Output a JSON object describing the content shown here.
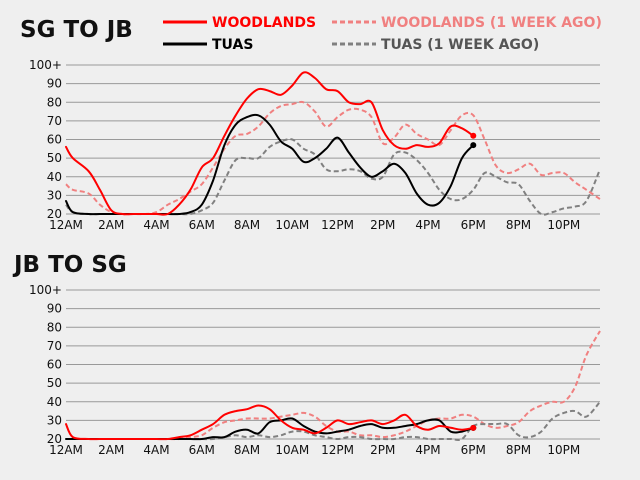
{
  "legend": {
    "woodlands": "WOODLANDS",
    "woodlands_week": "WOODLANDS (1 WEEK AGO)",
    "tuas": "TUAS",
    "tuas_week": "TUAS (1 WEEK AGO)"
  },
  "colors": {
    "woodlands": "#ff0000",
    "woodlands_week": "#f08080",
    "tuas": "#000000",
    "tuas_week": "#808080",
    "grid": "#999999",
    "background": "#efefef"
  },
  "chart_data": [
    {
      "type": "line",
      "title": "SG TO JB",
      "x_unit": "hour of day",
      "x_ticks": [
        0,
        2,
        4,
        6,
        8,
        10,
        12,
        14,
        16,
        18,
        20,
        22
      ],
      "x_tick_labels": [
        "12AM",
        "2AM",
        "4AM",
        "6AM",
        "8AM",
        "10AM",
        "12PM",
        "2PM",
        "4PM",
        "6PM",
        "8PM",
        "10PM"
      ],
      "y_ticks": [
        20,
        30,
        40,
        50,
        60,
        70,
        80,
        90,
        100
      ],
      "y_tick_labels": [
        "20",
        "30",
        "40",
        "50",
        "60",
        "70",
        "80",
        "90",
        "100+"
      ],
      "xlim": [
        0,
        23.6
      ],
      "ylim": [
        20,
        100
      ],
      "grid": "horizontal",
      "legend_position": "top-right",
      "series": [
        {
          "key": "woodlands",
          "name": "WOODLANDS",
          "style": "solid",
          "end_marker": true,
          "x": [
            0,
            0.3,
            1,
            1.5,
            2,
            2.5,
            3,
            3.5,
            4,
            4.5,
            5,
            5.5,
            6,
            6.5,
            7,
            7.5,
            8,
            8.5,
            9,
            9.5,
            10,
            10.5,
            11,
            11.5,
            12,
            12.5,
            13,
            13.5,
            14,
            14.5,
            15,
            15.5,
            16,
            16.5,
            17,
            17.5,
            18
          ],
          "y": [
            56,
            50,
            43,
            33,
            22,
            20,
            20,
            20,
            20,
            20,
            25,
            33,
            45,
            50,
            62,
            73,
            82,
            87,
            86,
            84,
            89,
            96,
            93,
            87,
            86,
            80,
            79,
            80,
            65,
            57,
            55,
            57,
            56,
            58,
            67,
            66,
            62
          ]
        },
        {
          "key": "tuas",
          "name": "TUAS",
          "style": "solid",
          "end_marker": true,
          "x": [
            0,
            0.3,
            1,
            1.5,
            2,
            2.5,
            3,
            3.5,
            4,
            4.5,
            5,
            5.5,
            6,
            6.5,
            7,
            7.5,
            8,
            8.5,
            9,
            9.5,
            10,
            10.5,
            11,
            11.5,
            12,
            12.5,
            13,
            13.5,
            14,
            14.5,
            15,
            15.5,
            16,
            16.5,
            17,
            17.5,
            18
          ],
          "y": [
            27,
            21,
            20,
            20,
            20,
            20,
            20,
            20,
            20,
            20,
            20,
            21,
            25,
            38,
            57,
            68,
            72,
            73,
            68,
            59,
            55,
            48,
            50,
            55,
            61,
            53,
            45,
            40,
            43,
            47,
            42,
            31,
            25,
            26,
            35,
            50,
            57
          ]
        },
        {
          "key": "woodlands_week",
          "name": "WOODLANDS (1 WEEK AGO)",
          "style": "dashed",
          "end_marker": false,
          "x": [
            0,
            0.3,
            1,
            1.5,
            2,
            2.5,
            3,
            3.5,
            4,
            4.5,
            5,
            5.5,
            6,
            6.5,
            7,
            7.5,
            8,
            8.5,
            9,
            9.5,
            10,
            10.5,
            11,
            11.5,
            12,
            12.5,
            13,
            13.5,
            14,
            14.5,
            15,
            15.5,
            16,
            16.5,
            17,
            17.5,
            18,
            18.5,
            19,
            19.5,
            20,
            20.5,
            21,
            21.5,
            22,
            22.5,
            23,
            23.6
          ],
          "y": [
            36,
            33,
            31,
            25,
            21,
            20,
            20,
            20,
            21,
            25,
            28,
            32,
            36,
            45,
            55,
            62,
            63,
            67,
            74,
            78,
            79,
            80,
            75,
            67,
            72,
            76,
            76,
            72,
            58,
            61,
            68,
            63,
            60,
            57,
            65,
            73,
            73,
            60,
            46,
            42,
            44,
            47,
            41,
            42,
            42,
            37,
            33,
            28
          ]
        },
        {
          "key": "tuas_week",
          "name": "TUAS (1 WEEK AGO)",
          "style": "dashed",
          "end_marker": false,
          "x": [
            0,
            0.3,
            1,
            1.5,
            2,
            2.5,
            3,
            3.5,
            4,
            4.5,
            5,
            5.5,
            6,
            6.5,
            7,
            7.5,
            8,
            8.5,
            9,
            9.5,
            10,
            10.5,
            11,
            11.5,
            12,
            12.5,
            13,
            13.5,
            14,
            14.5,
            15,
            15.5,
            16,
            16.5,
            17,
            17.5,
            18,
            18.5,
            19,
            19.5,
            20,
            20.5,
            21,
            21.5,
            22,
            22.5,
            23,
            23.6
          ],
          "y": [
            25,
            21,
            20,
            20,
            20,
            20,
            20,
            20,
            20,
            20,
            20,
            20,
            22,
            26,
            38,
            49,
            50,
            50,
            56,
            59,
            60,
            55,
            52,
            44,
            43,
            44,
            43,
            39,
            40,
            52,
            53,
            49,
            42,
            33,
            28,
            28,
            33,
            42,
            40,
            37,
            36,
            27,
            20,
            21,
            23,
            24,
            27,
            44
          ]
        }
      ]
    },
    {
      "type": "line",
      "title": "JB TO SG",
      "x_unit": "hour of day",
      "x_ticks": [
        0,
        2,
        4,
        6,
        8,
        10,
        12,
        14,
        16,
        18,
        20,
        22
      ],
      "x_tick_labels": [
        "12AM",
        "2AM",
        "4AM",
        "6AM",
        "8AM",
        "10AM",
        "12PM",
        "2PM",
        "4PM",
        "6PM",
        "8PM",
        "10PM"
      ],
      "y_ticks": [
        20,
        30,
        40,
        50,
        60,
        70,
        80,
        90,
        100
      ],
      "y_tick_labels": [
        "20",
        "30",
        "40",
        "50",
        "60",
        "70",
        "80",
        "90",
        "100+"
      ],
      "xlim": [
        0,
        23.6
      ],
      "ylim": [
        20,
        100
      ],
      "grid": "horizontal",
      "series": [
        {
          "key": "woodlands",
          "name": "WOODLANDS",
          "style": "solid",
          "end_marker": true,
          "x": [
            0,
            0.3,
            1,
            1.5,
            2,
            2.5,
            3,
            3.5,
            4,
            4.5,
            5,
            5.5,
            6,
            6.5,
            7,
            7.5,
            8,
            8.5,
            9,
            9.5,
            10,
            10.5,
            11,
            11.5,
            12,
            12.5,
            13,
            13.5,
            14,
            14.5,
            15,
            15.5,
            16,
            16.5,
            17,
            17.5,
            18
          ],
          "y": [
            28,
            21,
            20,
            20,
            20,
            20,
            20,
            20,
            20,
            20,
            21,
            22,
            25,
            28,
            33,
            35,
            36,
            38,
            36,
            30,
            26,
            25,
            23,
            26,
            30,
            28,
            29,
            30,
            28,
            30,
            33,
            27,
            25,
            27,
            26,
            25,
            26
          ]
        },
        {
          "key": "tuas",
          "name": "TUAS",
          "style": "solid",
          "end_marker": true,
          "x": [
            0,
            0.3,
            1,
            1.5,
            2,
            2.5,
            3,
            3.5,
            4,
            4.5,
            5,
            5.5,
            6,
            6.5,
            7,
            7.5,
            8,
            8.5,
            9,
            9.5,
            10,
            10.5,
            11,
            11.5,
            12,
            12.5,
            13,
            13.5,
            14,
            14.5,
            15,
            15.5,
            16,
            16.5,
            17,
            17.5,
            18
          ],
          "y": [
            20,
            20,
            20,
            20,
            20,
            20,
            20,
            20,
            20,
            20,
            20,
            20,
            20,
            21,
            21,
            24,
            25,
            23,
            29,
            30,
            31,
            27,
            24,
            23,
            24,
            25,
            27,
            28,
            26,
            26,
            27,
            28,
            30,
            30,
            24,
            24,
            26
          ]
        },
        {
          "key": "woodlands_week",
          "name": "WOODLANDS (1 WEEK AGO)",
          "style": "dashed",
          "end_marker": false,
          "x": [
            0,
            0.3,
            1,
            1.5,
            2,
            2.5,
            3,
            3.5,
            4,
            4.5,
            5,
            5.5,
            6,
            6.5,
            7,
            7.5,
            8,
            8.5,
            9,
            9.5,
            10,
            10.5,
            11,
            11.5,
            12,
            12.5,
            13,
            13.5,
            14,
            14.5,
            15,
            15.5,
            16,
            16.5,
            17,
            17.5,
            18,
            18.5,
            19,
            19.5,
            20,
            20.5,
            21,
            21.5,
            22,
            22.5,
            23,
            23.6
          ],
          "y": [
            20,
            20,
            20,
            20,
            20,
            20,
            20,
            20,
            20,
            20,
            20,
            21,
            22,
            26,
            29,
            30,
            31,
            31,
            31,
            32,
            33,
            34,
            32,
            27,
            24,
            24,
            22,
            22,
            21,
            22,
            24,
            27,
            30,
            31,
            31,
            33,
            32,
            28,
            26,
            27,
            29,
            35,
            38,
            40,
            40,
            48,
            65,
            78
          ]
        },
        {
          "key": "tuas_week",
          "name": "TUAS (1 WEEK AGO)",
          "style": "dashed",
          "end_marker": false,
          "x": [
            0,
            0.3,
            1,
            1.5,
            2,
            2.5,
            3,
            3.5,
            4,
            4.5,
            5,
            5.5,
            6,
            6.5,
            7,
            7.5,
            8,
            8.5,
            9,
            9.5,
            10,
            10.5,
            11,
            11.5,
            12,
            12.5,
            13,
            13.5,
            14,
            14.5,
            15,
            15.5,
            16,
            16.5,
            17,
            17.5,
            18,
            18.5,
            19,
            19.5,
            20,
            20.5,
            21,
            21.5,
            22,
            22.5,
            23,
            23.6
          ],
          "y": [
            20,
            20,
            20,
            20,
            20,
            20,
            20,
            20,
            20,
            20,
            20,
            20,
            20,
            20,
            21,
            22,
            21,
            22,
            21,
            22,
            24,
            24,
            22,
            21,
            20,
            21,
            21,
            20,
            20,
            20,
            21,
            21,
            20,
            20,
            20,
            20,
            27,
            28,
            28,
            28,
            22,
            21,
            24,
            31,
            34,
            35,
            32,
            40
          ]
        }
      ]
    }
  ]
}
